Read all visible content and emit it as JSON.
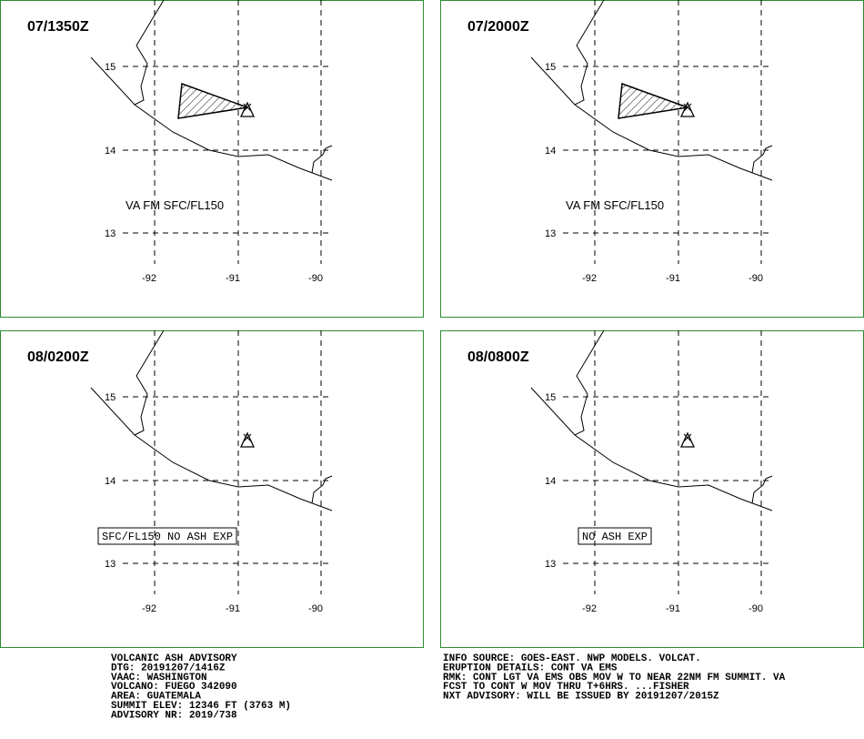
{
  "panels": [
    {
      "time": "07/1350Z",
      "lat_labels": [
        15,
        14,
        13
      ],
      "lon_labels": [
        -92,
        -91,
        -90
      ],
      "annotation": "VA FM SFC/FL150",
      "annotation_boxed": false,
      "ash_area": true
    },
    {
      "time": "07/2000Z",
      "lat_labels": [
        15,
        14,
        13
      ],
      "lon_labels": [
        -92,
        -91,
        -90
      ],
      "annotation": "VA FM SFC/FL150",
      "annotation_boxed": false,
      "ash_area": true
    },
    {
      "time": "08/0200Z",
      "lat_labels": [
        15,
        14,
        13
      ],
      "lon_labels": [
        -92,
        -91,
        -90
      ],
      "annotation": "SFC/FL150 NO ASH EXP",
      "annotation_boxed": true,
      "ash_area": false
    },
    {
      "time": "08/0800Z",
      "lat_labels": [
        15,
        14,
        13
      ],
      "lon_labels": [
        -92,
        -91,
        -90
      ],
      "annotation": "NO ASH EXP",
      "annotation_boxed": true,
      "ash_area": false
    }
  ],
  "advisory_left": [
    "VOLCANIC ASH ADVISORY",
    "DTG: 20191207/1416Z",
    "VAAC: WASHINGTON",
    "VOLCANO: FUEGO 342090",
    "AREA: GUATEMALA",
    "SUMMIT ELEV: 12346 FT (3763 M)",
    "ADVISORY NR: 2019/738"
  ],
  "advisory_right": [
    "INFO SOURCE: GOES-EAST. NWP MODELS. VOLCAT.",
    "ERUPTION DETAILS: CONT VA EMS",
    "RMK: CONT LGT VA EMS OBS MOV W TO NEAR 22NM FM SUMMIT. VA",
    "FCST TO CONT W MOV THRU T+6HRS. ...FISHER",
    "NXT ADVISORY: WILL BE ISSUED BY 20191207/2015Z"
  ]
}
